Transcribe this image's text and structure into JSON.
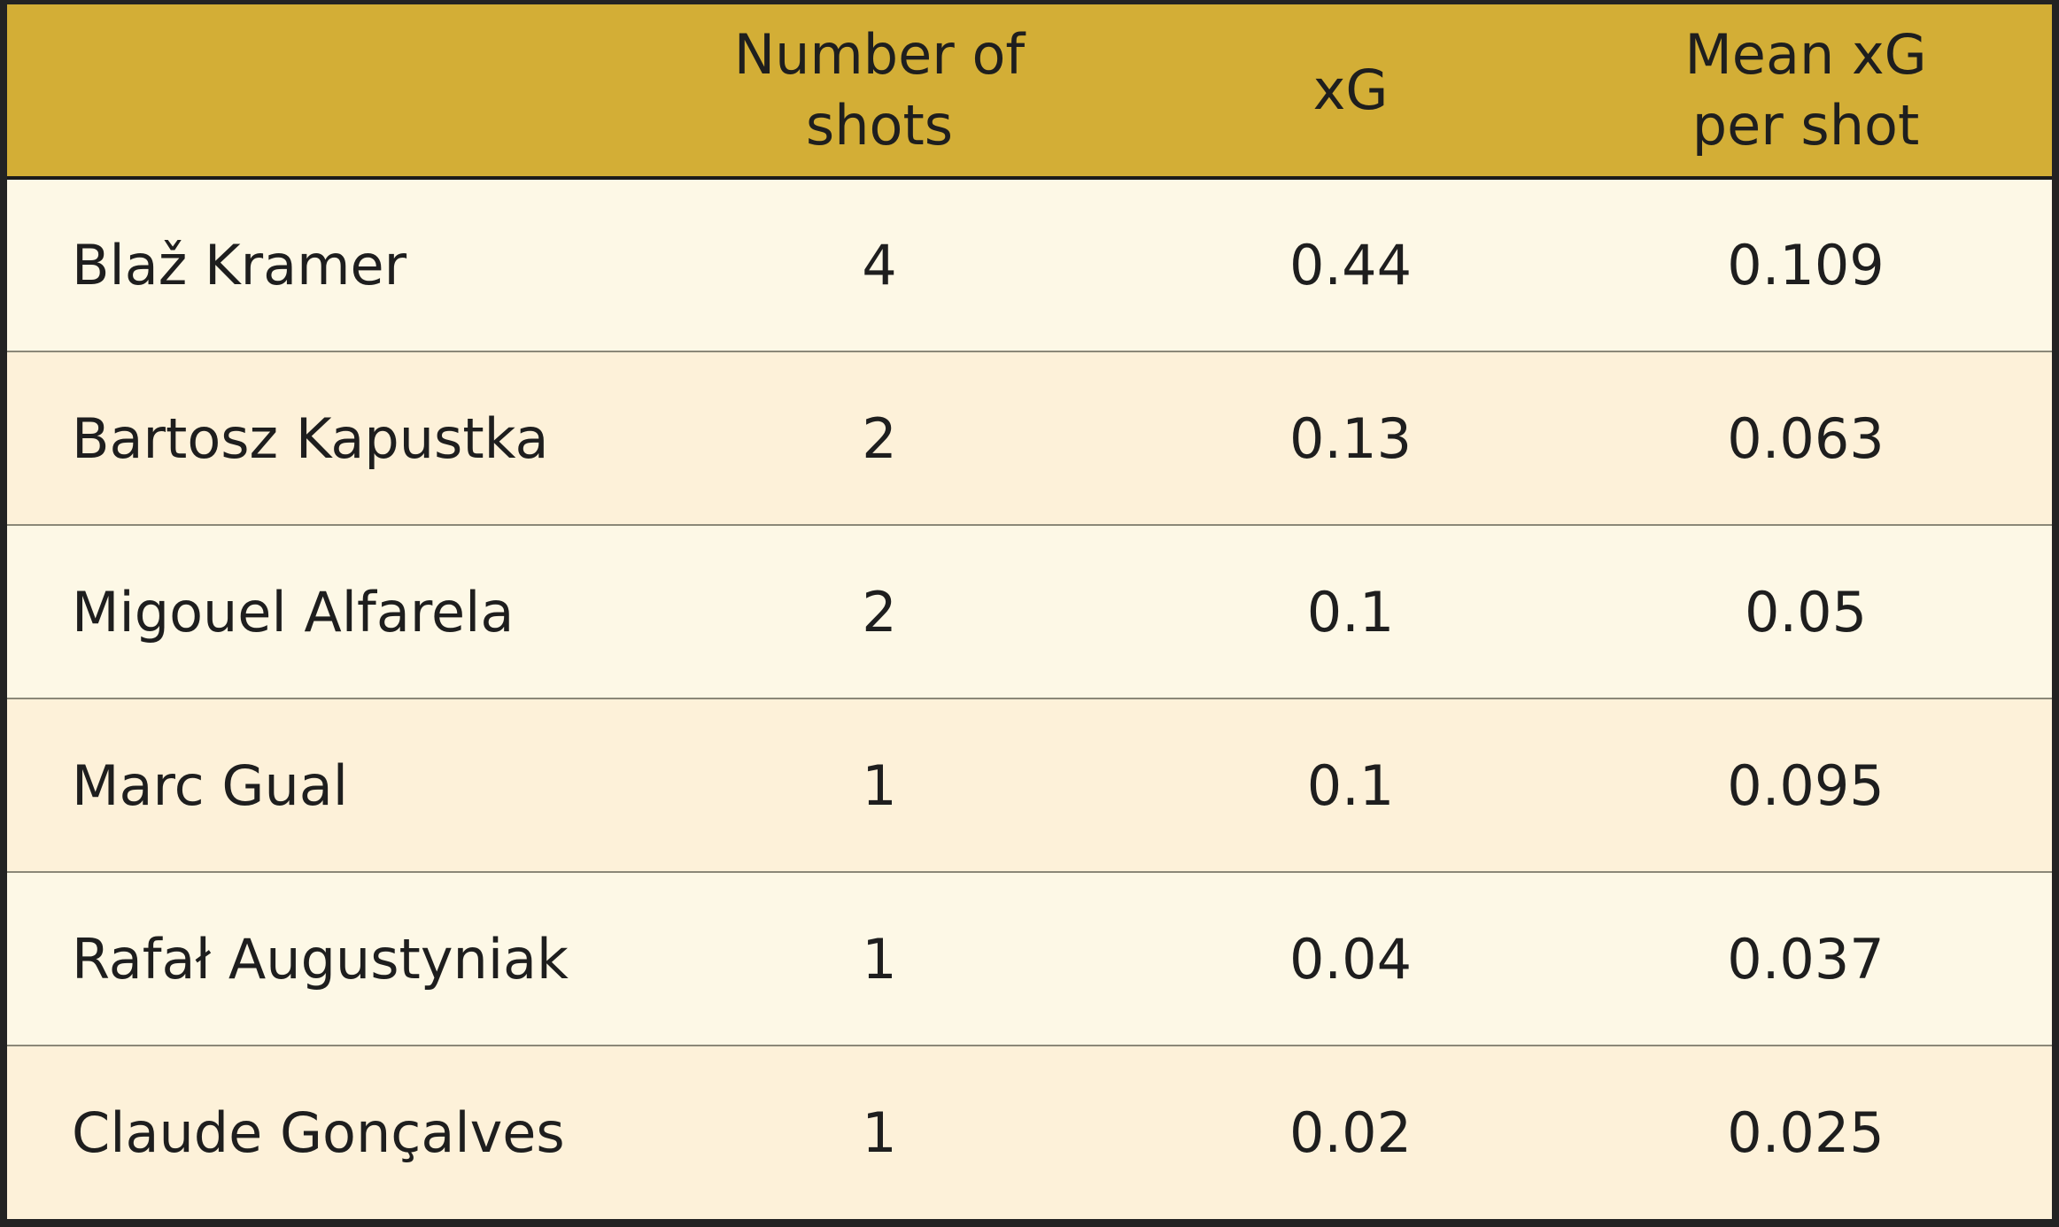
{
  "chart_data": {
    "type": "table",
    "columns": [
      "",
      "Number of shots",
      "xG",
      "Mean xG per shot"
    ],
    "header_lines": {
      "shots": [
        "Number of",
        "shots"
      ],
      "xg": [
        "xG"
      ],
      "mean": [
        "Mean xG",
        "per shot"
      ]
    },
    "rows": [
      {
        "player": "Blaž Kramer",
        "shots": "4",
        "xg": "0.44",
        "mean": "0.109"
      },
      {
        "player": "Bartosz Kapustka",
        "shots": "2",
        "xg": "0.13",
        "mean": "0.063"
      },
      {
        "player": "Migouel Alfarela",
        "shots": "2",
        "xg": "0.1",
        "mean": "0.05"
      },
      {
        "player": "Marc Gual",
        "shots": "1",
        "xg": "0.1",
        "mean": "0.095"
      },
      {
        "player": "Rafał Augustyniak",
        "shots": "1",
        "xg": "0.04",
        "mean": "0.037"
      },
      {
        "player": "Claude Gonçalves",
        "shots": "1",
        "xg": "0.02",
        "mean": "0.025"
      }
    ]
  },
  "colors": {
    "header_background": "#d3ae36",
    "row_odd": "#fdf8e6",
    "row_even": "#fdf1d9",
    "frame": "#232323",
    "text": "#1e1e1e"
  }
}
